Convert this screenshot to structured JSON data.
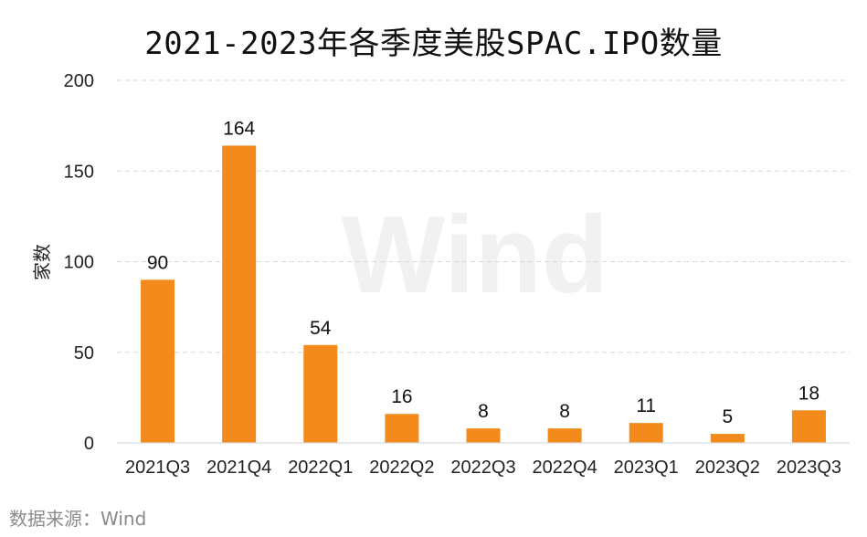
{
  "chart_data": {
    "type": "bar",
    "title": "2021-2023年各季度美股SPAC.IPO数量",
    "ylabel": "家数",
    "xlabel": "",
    "categories": [
      "2021Q3",
      "2021Q4",
      "2022Q1",
      "2022Q2",
      "2022Q3",
      "2022Q4",
      "2023Q1",
      "2023Q2",
      "2023Q3"
    ],
    "values": [
      90,
      164,
      54,
      16,
      8,
      8,
      11,
      5,
      18
    ],
    "ylim": [
      0,
      200
    ],
    "yticks": [
      0,
      50,
      100,
      150,
      200
    ],
    "grid": true,
    "bar_color": "#f28a1c",
    "watermark": "Wind"
  },
  "source_note": "数据来源：Wind"
}
